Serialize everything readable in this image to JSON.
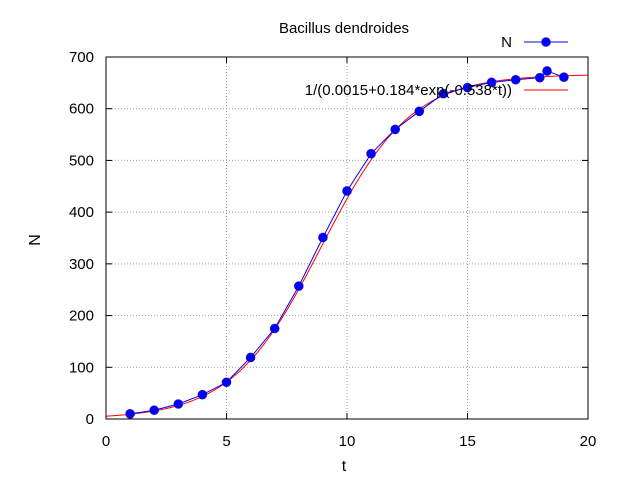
{
  "chart_data": {
    "type": "line",
    "title": "Bacillus dendroides",
    "xlabel": "t",
    "ylabel": "N",
    "xlim": [
      0,
      20
    ],
    "ylim": [
      0,
      700
    ],
    "x_ticks": [
      "0",
      "5",
      "10",
      "15",
      "20"
    ],
    "y_ticks": [
      "0",
      "100",
      "200",
      "300",
      "400",
      "500",
      "600",
      "700"
    ],
    "grid": true,
    "legend_position": "top-right",
    "series": [
      {
        "name": "N",
        "color": "#0000ff",
        "style": "line-points",
        "x": [
          1,
          2,
          3,
          4,
          5,
          6,
          7,
          8,
          9,
          10,
          11,
          12,
          13,
          14,
          15,
          16,
          17,
          18,
          18.3,
          19
        ],
        "y": [
          10,
          17,
          29,
          47,
          71,
          119,
          175,
          257,
          351,
          441,
          513,
          560,
          595,
          629,
          641,
          651,
          656,
          660,
          673,
          661
        ]
      },
      {
        "name": "1/(0.0015+0.184*exp(-0.538*t))",
        "color": "#ff0000",
        "style": "function",
        "formula": {
          "a": 0.0015,
          "b": 0.184,
          "k": 0.538
        }
      }
    ]
  }
}
